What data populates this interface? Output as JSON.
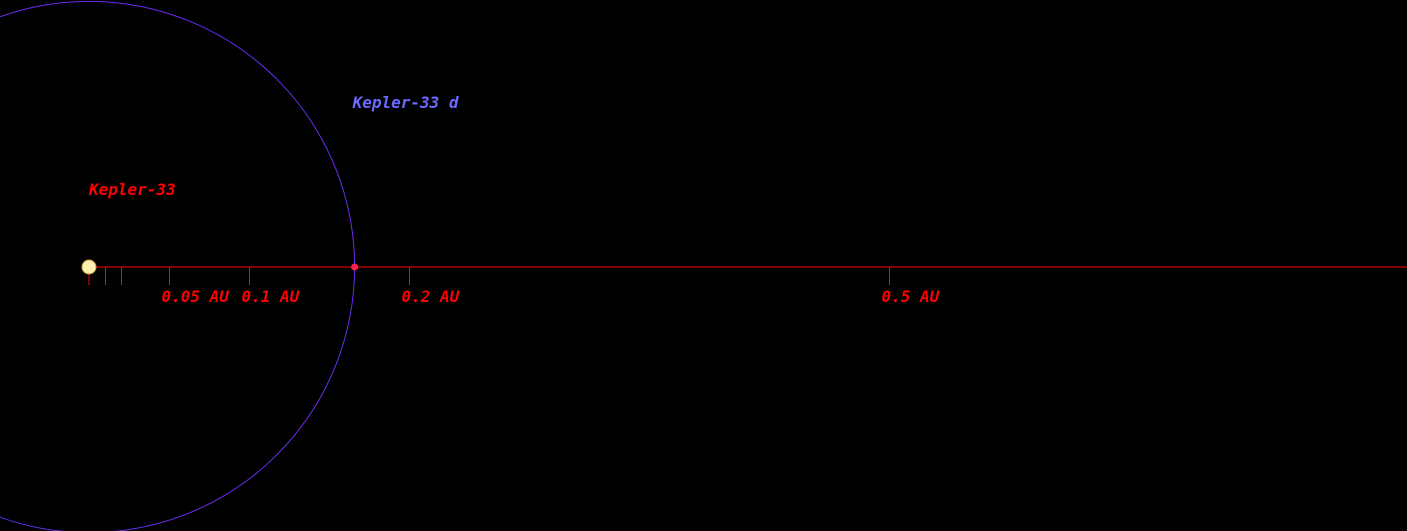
{
  "colors": {
    "background": "#000000",
    "axis": "#ff0000",
    "tick_label": "#ff0000",
    "star_label": "#ff0000",
    "planet_label": "#6a6aff",
    "orbit": "#6a2cf0",
    "star_fill": "#fff2b0",
    "planet_fill": "#ff2050"
  },
  "star": {
    "name": "Kepler-33",
    "icon": "star-icon"
  },
  "planets": [
    {
      "name": "Kepler-33 d",
      "semi_major_axis_au": 0.166,
      "icon": "planet-icon"
    }
  ],
  "scale": {
    "unit": "AU",
    "major_ticks": [
      {
        "au": 0.05,
        "label": "0.05 AU"
      },
      {
        "au": 0.1,
        "label": "0.1 AU"
      },
      {
        "au": 0.2,
        "label": "0.2 AU"
      },
      {
        "au": 0.5,
        "label": "0.5 AU"
      }
    ],
    "minor_ticks_au": [
      0.01,
      0.02
    ]
  }
}
